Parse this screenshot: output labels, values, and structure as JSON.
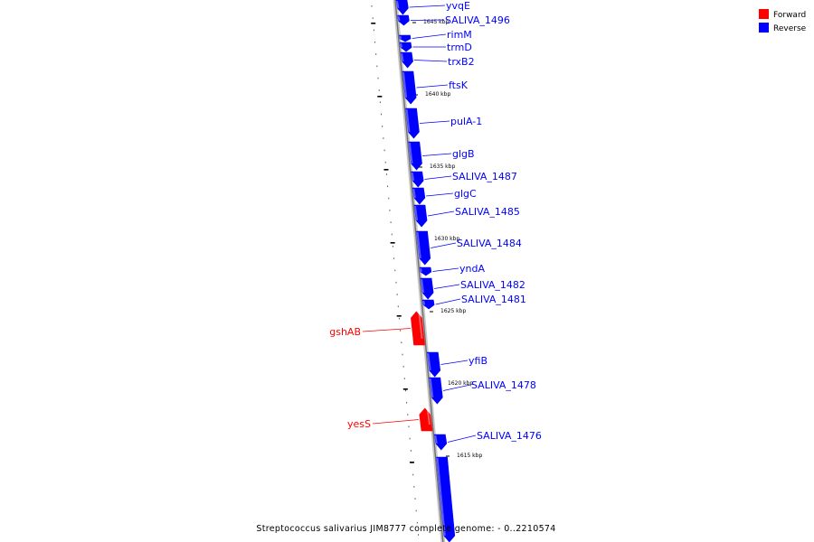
{
  "caption": "Streptococcus salivarius JIM8777 complete genome: - 0..2210574",
  "legend": [
    {
      "label": "Forward",
      "color": "#ff0000"
    },
    {
      "label": "Reverse",
      "color": "#0000ff"
    }
  ],
  "colors": {
    "forward": "#ff0000",
    "reverse": "#0000ff",
    "backbone": "#a0a0a0"
  },
  "ticks": [
    "1645 kbp",
    "1640 kbp",
    "1635 kbp",
    "1630 kbp",
    "1625 kbp",
    "1620 kbp",
    "1615 kbp"
  ],
  "genes": [
    {
      "name": "yvqE",
      "strand": "reverse"
    },
    {
      "name": "SALIVA_1496",
      "strand": "reverse"
    },
    {
      "name": "rimM",
      "strand": "reverse"
    },
    {
      "name": "trmD",
      "strand": "reverse"
    },
    {
      "name": "trxB2",
      "strand": "reverse"
    },
    {
      "name": "ftsK",
      "strand": "reverse"
    },
    {
      "name": "pulA-1",
      "strand": "reverse"
    },
    {
      "name": "glgB",
      "strand": "reverse"
    },
    {
      "name": "SALIVA_1487",
      "strand": "reverse"
    },
    {
      "name": "glgC",
      "strand": "reverse"
    },
    {
      "name": "SALIVA_1485",
      "strand": "reverse"
    },
    {
      "name": "SALIVA_1484",
      "strand": "reverse"
    },
    {
      "name": "yndA",
      "strand": "reverse"
    },
    {
      "name": "SALIVA_1482",
      "strand": "reverse"
    },
    {
      "name": "SALIVA_1481",
      "strand": "reverse"
    },
    {
      "name": "gshAB",
      "strand": "forward"
    },
    {
      "name": "yfiB",
      "strand": "reverse"
    },
    {
      "name": "SALIVA_1478",
      "strand": "reverse"
    },
    {
      "name": "yesS",
      "strand": "forward"
    },
    {
      "name": "SALIVA_1476",
      "strand": "reverse"
    }
  ]
}
